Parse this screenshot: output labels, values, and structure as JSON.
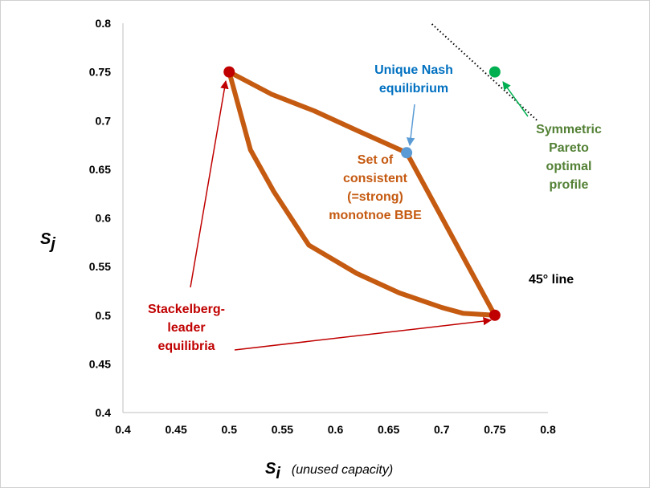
{
  "chart_data": {
    "type": "line",
    "xlabel": {
      "var": "S",
      "sub": "i",
      "desc": "(unused capacity)"
    },
    "ylabel": {
      "var": "S",
      "sub": "j"
    },
    "xlim": [
      0.4,
      0.8
    ],
    "ylim": [
      0.4,
      0.8
    ],
    "xticks": [
      "0.4",
      "0.45",
      "0.5",
      "0.55",
      "0.6",
      "0.65",
      "0.7",
      "0.75",
      "0.8"
    ],
    "yticks": [
      "0.4",
      "0.45",
      "0.5",
      "0.55",
      "0.6",
      "0.65",
      "0.7",
      "0.75",
      "0.8"
    ],
    "grid": false,
    "bbe_boundary": {
      "color": "#c55a11",
      "points": [
        [
          0.5,
          0.75
        ],
        [
          0.54,
          0.727
        ],
        [
          0.58,
          0.71
        ],
        [
          0.62,
          0.69
        ],
        [
          0.667,
          0.667
        ],
        [
          0.75,
          0.5
        ],
        [
          0.72,
          0.502
        ],
        [
          0.7,
          0.508
        ],
        [
          0.66,
          0.523
        ],
        [
          0.62,
          0.543
        ],
        [
          0.575,
          0.572
        ],
        [
          0.542,
          0.627
        ],
        [
          0.52,
          0.67
        ],
        [
          0.5,
          0.75
        ]
      ]
    },
    "line_45": {
      "points": [
        [
          0.64,
          0.85
        ],
        [
          0.79,
          0.7
        ]
      ],
      "color": "#000000",
      "style": "dotted"
    },
    "points": [
      {
        "id": "stackelberg-1",
        "x": 0.5,
        "y": 0.75,
        "color": "#c00000"
      },
      {
        "id": "stackelberg-2",
        "x": 0.75,
        "y": 0.5,
        "color": "#c00000"
      },
      {
        "id": "nash",
        "x": 0.667,
        "y": 0.667,
        "color": "#5b9bd5"
      },
      {
        "id": "pareto",
        "x": 0.75,
        "y": 0.75,
        "color": "#00b050"
      }
    ],
    "annotations": [
      {
        "id": "nash-label",
        "lines": [
          "Unique Nash",
          "equilibrium"
        ],
        "color": "#0070c0"
      },
      {
        "id": "bbe-label",
        "lines": [
          "Set of",
          "consistent",
          "(=strong)",
          "monotnoe BBE"
        ],
        "color": "#c55a11"
      },
      {
        "id": "pareto-label",
        "lines": [
          "Symmetric",
          "Pareto",
          "optimal",
          "profile"
        ],
        "color": "#538135"
      },
      {
        "id": "stackelberg-label",
        "lines": [
          "Stackelberg-",
          "leader",
          "equilibria"
        ],
        "color": "#c00000"
      },
      {
        "id": "line45-label",
        "lines": [
          "45° line"
        ],
        "color": "#000000"
      }
    ]
  }
}
